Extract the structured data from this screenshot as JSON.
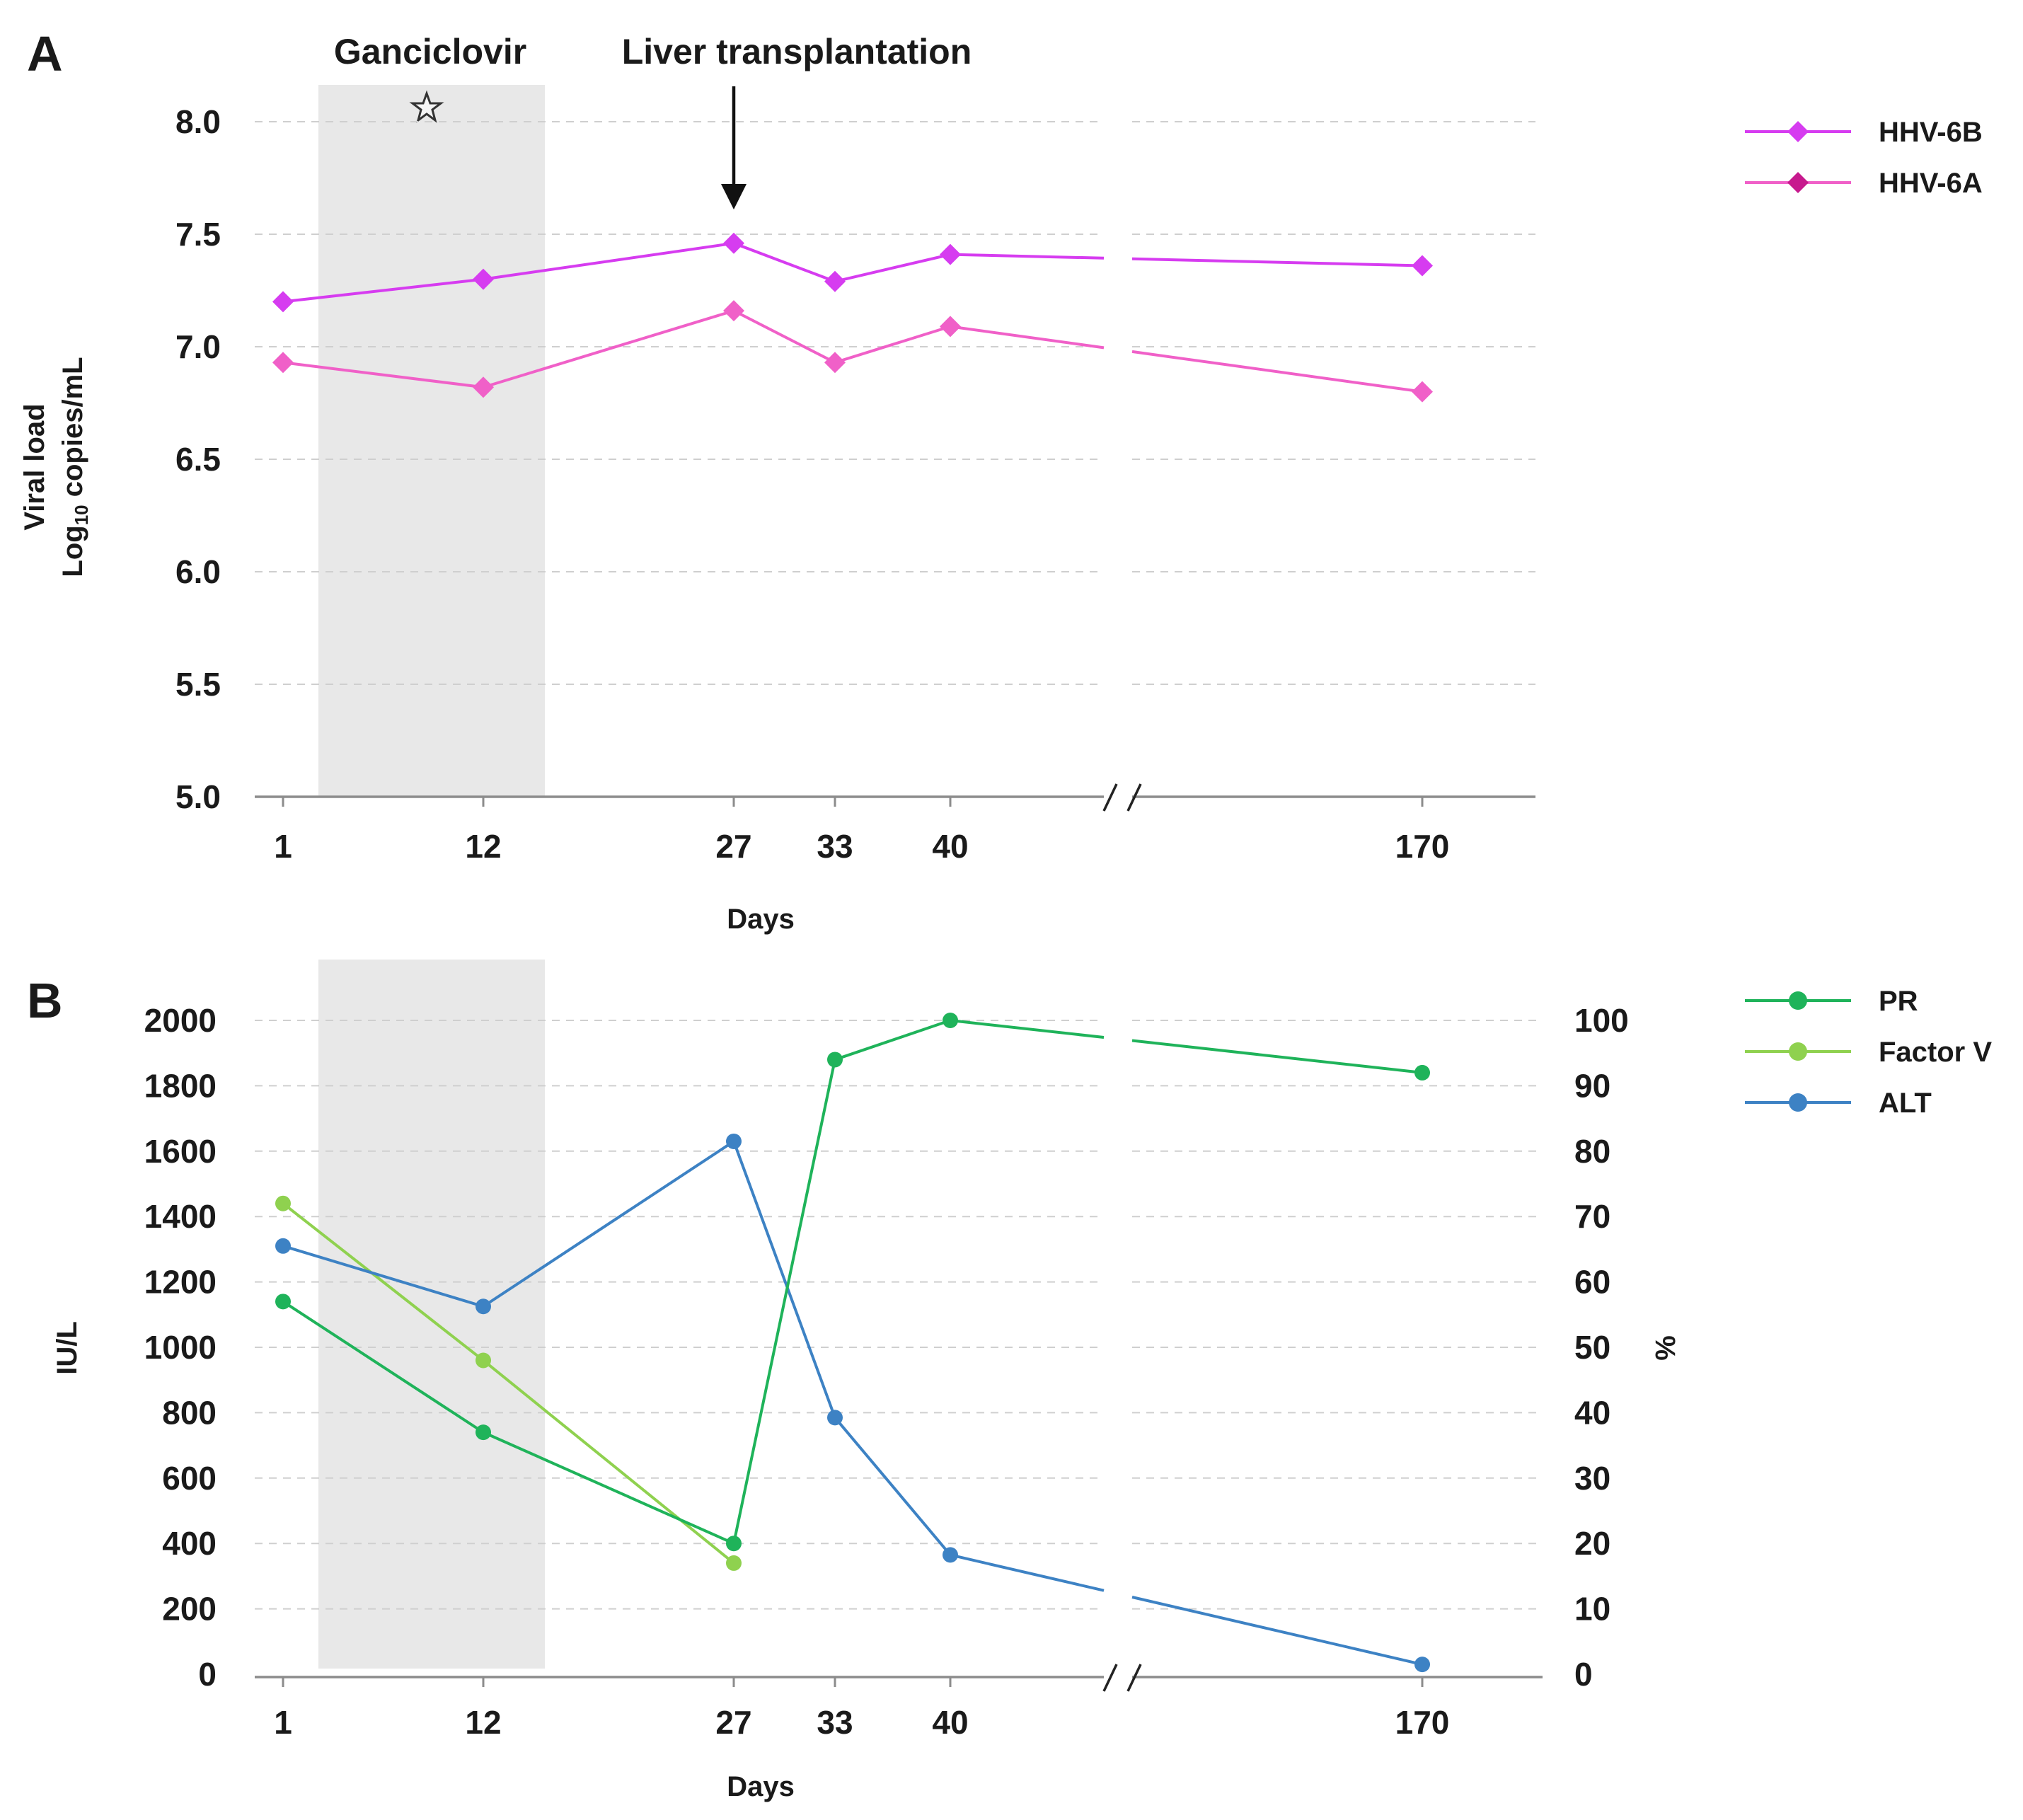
{
  "chart_data": [
    {
      "panel": "A",
      "type": "line",
      "x": [
        1,
        12,
        27,
        33,
        40,
        170
      ],
      "x_tick_labels": [
        "1",
        "12",
        "27",
        "33",
        "40",
        "170"
      ],
      "xlabel": "Days",
      "ylabel_line1": "Viral load",
      "ylabel_line2": "Log",
      "ylabel_sub": "10",
      "ylabel_line2_rest": " copies/mL",
      "ylim": [
        5.0,
        8.0
      ],
      "y_ticks": [
        "5.0",
        "5.5",
        "6.0",
        "6.5",
        "7.0",
        "7.5",
        "8.0"
      ],
      "axis_break": "between day 40 and day 170",
      "series": [
        {
          "name": "HHV-6B",
          "values": [
            7.2,
            7.3,
            7.46,
            7.29,
            7.41,
            7.36
          ],
          "color": "#d63cf0"
        },
        {
          "name": "HHV-6A",
          "values": [
            6.93,
            6.82,
            7.16,
            6.93,
            7.09,
            6.8
          ],
          "color": "#f060c8"
        }
      ],
      "legend_marker_colors": [
        "#d63cf0",
        "#c71a8e"
      ],
      "annotations": {
        "shaded_label": "Ganciclovir",
        "arrow_label": "Liver transplantation",
        "star_icon": "star-icon"
      }
    },
    {
      "panel": "B",
      "type": "line",
      "x": [
        1,
        12,
        27,
        33,
        40,
        170
      ],
      "x_tick_labels": [
        "1",
        "12",
        "27",
        "33",
        "40",
        "170"
      ],
      "xlabel": "Days",
      "ylabel_left": "IU/L",
      "ylabel_right": "%",
      "ylim_left": [
        0,
        2000
      ],
      "ylim_right": [
        0,
        100
      ],
      "y_ticks_left": [
        "0",
        "200",
        "400",
        "600",
        "800",
        "1000",
        "1200",
        "1400",
        "1600",
        "1800",
        "2000"
      ],
      "y_ticks_right": [
        "0",
        "10",
        "20",
        "30",
        "40",
        "50",
        "60",
        "70",
        "80",
        "90",
        "100"
      ],
      "axis_break": "between day 40 and day 170",
      "series": [
        {
          "name": "PR",
          "axis": "right",
          "unit": "%",
          "x": [
            1,
            12,
            27,
            33,
            40,
            170
          ],
          "values": [
            57,
            37,
            20,
            94,
            100,
            92
          ],
          "color": "#1fb35a"
        },
        {
          "name": "Factor V",
          "axis": "right",
          "unit": "%",
          "x": [
            1,
            12,
            27
          ],
          "values": [
            72,
            48,
            17
          ],
          "color": "#8fd14f"
        },
        {
          "name": "ALT",
          "axis": "left",
          "unit": "IU/L",
          "x": [
            1,
            12,
            27,
            33,
            40,
            170
          ],
          "values": [
            1310,
            1125,
            1630,
            785,
            365,
            30
          ],
          "color": "#3d82c4"
        }
      ]
    }
  ]
}
